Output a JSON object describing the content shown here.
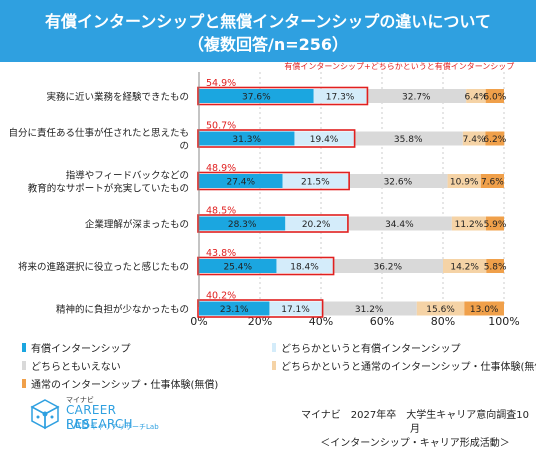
{
  "header": {
    "title_line1": "有償インターンシップと無償インターンシップの違いについて",
    "title_line2": "（複数回答/n=256）"
  },
  "colors": {
    "paid": "#1ba6e0",
    "somewhat_paid": "#d4ecfa",
    "neither": "#d9d9d9",
    "somewhat_unpaid": "#f5d3a6",
    "unpaid": "#f0a04a",
    "highlight": "#e02020",
    "header_bg": "#2fa0e0"
  },
  "chart_data": {
    "type": "bar",
    "orientation": "horizontal",
    "stacked": true,
    "categories": [
      "実務に近い業務を経験できたもの",
      "自分に責任ある仕事が任されたと思えたもの",
      "指導やフィードバックなどの教育的なサポートが充実していたもの",
      "企業理解が深まったもの",
      "将来の進路選択に役立ったと感じたもの",
      "精神的に負担が少なかったもの"
    ],
    "category_lines": [
      [
        "実務に近い業務を経験できたもの"
      ],
      [
        "自分に責任ある仕事が任されたと思えたも",
        "の"
      ],
      [
        "指導やフィードバックなどの",
        "教育的なサポートが充実していたもの"
      ],
      [
        "企業理解が深まったもの"
      ],
      [
        "将来の進路選択に役立ったと感じたもの"
      ],
      [
        "精神的に負担が少なかったもの"
      ]
    ],
    "series": [
      {
        "name": "有償インターンシップ",
        "values": [
          37.6,
          31.3,
          27.4,
          28.3,
          25.4,
          23.1
        ]
      },
      {
        "name": "どちらかというと有償インターンシップ",
        "values": [
          17.3,
          19.4,
          21.5,
          20.2,
          18.4,
          17.1
        ]
      },
      {
        "name": "どちらともいえない",
        "values": [
          32.7,
          35.8,
          32.6,
          34.4,
          36.2,
          31.2
        ]
      },
      {
        "name": "どちらかというと通常のインターンシップ・仕事体験(無償)",
        "values": [
          6.4,
          7.4,
          10.9,
          11.2,
          14.2,
          15.6
        ]
      },
      {
        "name": "通常のインターンシップ・仕事体験(無償)",
        "values": [
          6.0,
          6.2,
          7.6,
          5.9,
          5.8,
          13.0
        ]
      }
    ],
    "combined_label": "有償インターンシップ+どちらかというと有償インターンシップ",
    "combined_values": [
      54.9,
      50.7,
      48.9,
      48.5,
      43.8,
      40.2
    ],
    "xlim": [
      0,
      100
    ],
    "xticks": [
      "0%",
      "20%",
      "40%",
      "60%",
      "80%",
      "100%"
    ],
    "value_suffix": "%",
    "grid": true,
    "legend_position": "bottom"
  },
  "legend": [
    {
      "label": "有償インターンシップ"
    },
    {
      "label": "どちらかというと有償インターンシップ"
    },
    {
      "label": "どちらともいえない"
    },
    {
      "label": "どちらかというと通常のインターンシップ・仕事体験(無償)"
    },
    {
      "label": "通常のインターンシップ・仕事体験(無償)"
    }
  ],
  "logo": {
    "brand": "マイナビ",
    "line1": "CAREER RESEARCH",
    "line2": "LAB",
    "sub": "キャリアリサーチLab"
  },
  "source": {
    "line1": "マイナビ　2027年卒　大学生キャリア意向調査10月",
    "line2": "＜インターンシップ・キャリア形成活動＞"
  }
}
